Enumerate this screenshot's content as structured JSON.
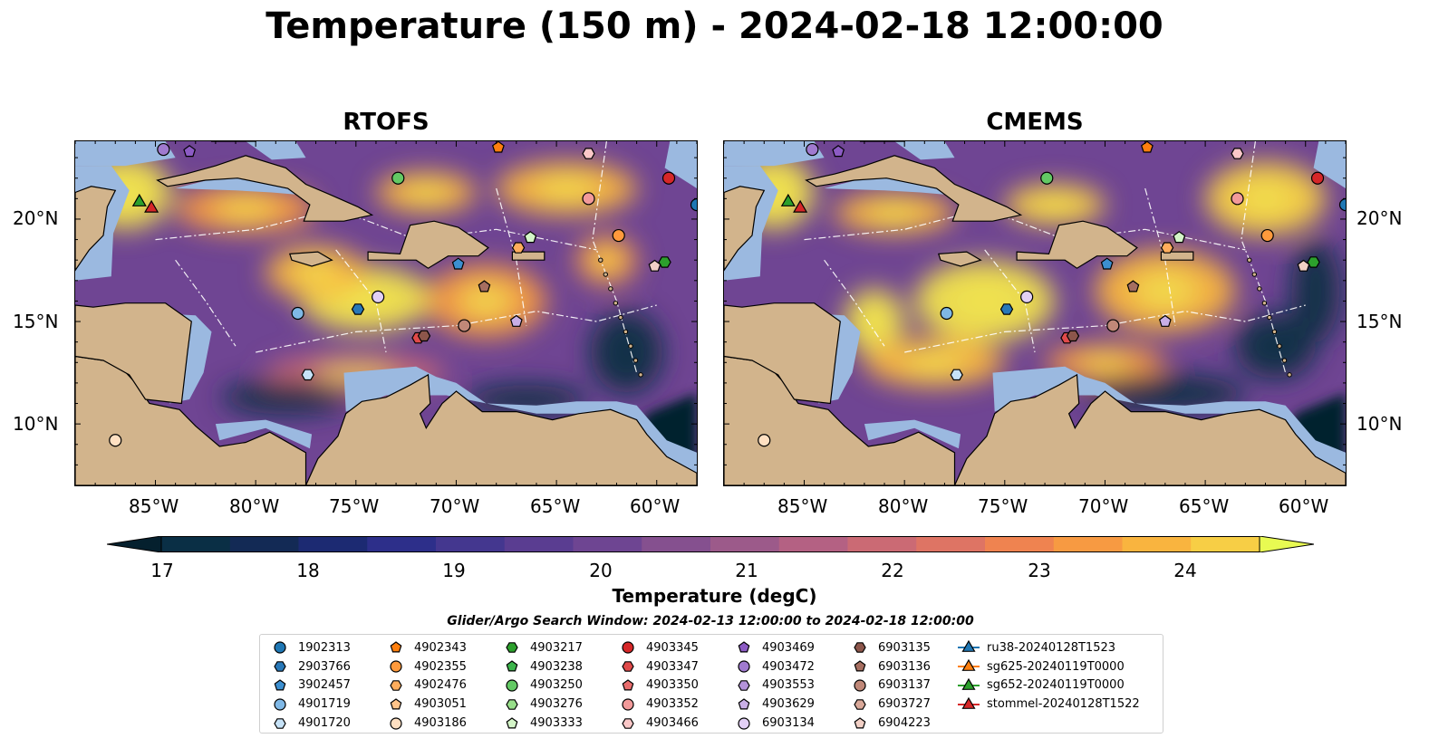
{
  "figure": {
    "title": "Temperature (150 m) - 2024-02-18 12:00:00",
    "panels": [
      {
        "title": "RTOFS"
      },
      {
        "title": "CMEMS"
      }
    ],
    "lat_ticks": [
      "20°N",
      "15°N",
      "10°N"
    ],
    "lon_ticks": [
      "85°W",
      "80°W",
      "75°W",
      "70°W",
      "65°W",
      "60°W"
    ]
  },
  "colorbar": {
    "label": "Temperature (degC)",
    "min": 16.5,
    "max": 24.5,
    "ticks": [
      "17",
      "18",
      "19",
      "20",
      "21",
      "22",
      "23",
      "24"
    ],
    "colors": [
      "#0a2f45",
      "#132a55",
      "#1c2a72",
      "#2d2f8a",
      "#44378f",
      "#5a3d91",
      "#6e4592",
      "#85508f",
      "#9c5a8a",
      "#b46183",
      "#cb6a74",
      "#de7464",
      "#ef8350",
      "#f79a42",
      "#f9b43f",
      "#f7ce45",
      "#f1e34e"
    ],
    "under_color": "#05202e",
    "over_color": "#e8fa52"
  },
  "search_window": "Glider/Argo Search Window: 2024-02-13 12:00:00 to 2024-02-18 12:00:00",
  "map_colors": {
    "land": "#d2b48c",
    "shelf": "#9bb9e0",
    "deep": "#6f4593"
  },
  "legend": {
    "columns": [
      [
        {
          "label": "1902313",
          "shape": "circle",
          "color": "#1f77b4"
        },
        {
          "label": "2903766",
          "shape": "hexagon",
          "color": "#2878b8"
        },
        {
          "label": "3902457",
          "shape": "pentagon",
          "color": "#3c8fd0"
        },
        {
          "label": "4901719",
          "shape": "circle",
          "color": "#7fb8e6"
        },
        {
          "label": "4901720",
          "shape": "hexagon",
          "color": "#c6e2f7"
        }
      ],
      [
        {
          "label": "4902343",
          "shape": "pentagon",
          "color": "#ff7f0e"
        },
        {
          "label": "4902355",
          "shape": "circle",
          "color": "#ff9a3c"
        },
        {
          "label": "4902476",
          "shape": "hexagon",
          "color": "#ffad5c"
        },
        {
          "label": "4903051",
          "shape": "pentagon",
          "color": "#ffc48a"
        },
        {
          "label": "4903186",
          "shape": "circle",
          "color": "#ffe0c2"
        }
      ],
      [
        {
          "label": "4903217",
          "shape": "hexagon",
          "color": "#2ca02c"
        },
        {
          "label": "4903238",
          "shape": "pentagon",
          "color": "#3cb44b"
        },
        {
          "label": "4903250",
          "shape": "circle",
          "color": "#63c964"
        },
        {
          "label": "4903276",
          "shape": "hexagon",
          "color": "#98df8a"
        },
        {
          "label": "4903333",
          "shape": "pentagon",
          "color": "#d4f5c8"
        }
      ],
      [
        {
          "label": "4903345",
          "shape": "circle",
          "color": "#d62728"
        },
        {
          "label": "4903347",
          "shape": "hexagon",
          "color": "#e04a4a"
        },
        {
          "label": "4903350",
          "shape": "pentagon",
          "color": "#ea6d6d"
        },
        {
          "label": "4903352",
          "shape": "circle",
          "color": "#f29a9a"
        },
        {
          "label": "4903466",
          "shape": "hexagon",
          "color": "#fbc8c8"
        }
      ],
      [
        {
          "label": "4903469",
          "shape": "pentagon",
          "color": "#8c5bc4"
        },
        {
          "label": "4903472",
          "shape": "circle",
          "color": "#a07acf"
        },
        {
          "label": "4903553",
          "shape": "hexagon",
          "color": "#b493da"
        },
        {
          "label": "4903629",
          "shape": "pentagon",
          "color": "#c9afe6"
        },
        {
          "label": "6903134",
          "shape": "circle",
          "color": "#e2cff5"
        }
      ],
      [
        {
          "label": "6903135",
          "shape": "hexagon",
          "color": "#8c564b"
        },
        {
          "label": "6903136",
          "shape": "pentagon",
          "color": "#a66e60"
        },
        {
          "label": "6903137",
          "shape": "circle",
          "color": "#c08878"
        },
        {
          "label": "6903727",
          "shape": "hexagon",
          "color": "#d9a899"
        },
        {
          "label": "6904223",
          "shape": "pentagon",
          "color": "#f2d0c6"
        }
      ],
      [
        {
          "label": "ru38-20240128T1523",
          "shape": "triangle-line",
          "color": "#1f77b4"
        },
        {
          "label": "sg625-20240119T0000",
          "shape": "triangle-line",
          "color": "#ff7f0e"
        },
        {
          "label": "sg652-20240119T0000",
          "shape": "triangle-line",
          "color": "#2ca02c"
        },
        {
          "label": "stommel-20240128T1522",
          "shape": "triangle-line",
          "color": "#d62728"
        }
      ]
    ]
  },
  "markers": [
    {
      "label": "1902313",
      "lon": -58.0,
      "lat": 20.7,
      "shape": "circle",
      "color": "#1f77b4"
    },
    {
      "label": "2903766",
      "lon": -74.9,
      "lat": 15.6,
      "shape": "hexagon",
      "color": "#2878b8"
    },
    {
      "label": "3902457",
      "lon": -69.9,
      "lat": 17.8,
      "shape": "pentagon",
      "color": "#3c8fd0"
    },
    {
      "label": "4901719",
      "lon": -77.9,
      "lat": 15.4,
      "shape": "circle",
      "color": "#7fb8e6"
    },
    {
      "label": "4901720",
      "lon": -77.4,
      "lat": 12.4,
      "shape": "hexagon",
      "color": "#c6e2f7"
    },
    {
      "label": "4902343",
      "lon": -67.9,
      "lat": 23.5,
      "shape": "pentagon",
      "color": "#ff7f0e"
    },
    {
      "label": "4902355",
      "lon": -61.9,
      "lat": 19.2,
      "shape": "circle",
      "color": "#ff9a3c"
    },
    {
      "label": "4902476",
      "lon": -66.9,
      "lat": 18.6,
      "shape": "hexagon",
      "color": "#ffad5c"
    },
    {
      "label": "4903186",
      "lon": -87.0,
      "lat": 9.2,
      "shape": "circle",
      "color": "#ffe0c2"
    },
    {
      "label": "4903217",
      "lon": -59.6,
      "lat": 17.9,
      "shape": "hexagon",
      "color": "#2ca02c"
    },
    {
      "label": "4903250",
      "lon": -72.9,
      "lat": 22.0,
      "shape": "circle",
      "color": "#63c964"
    },
    {
      "label": "4903333",
      "lon": -66.3,
      "lat": 19.1,
      "shape": "pentagon",
      "color": "#d4f5c8"
    },
    {
      "label": "4903345",
      "lon": -59.4,
      "lat": 22.0,
      "shape": "circle",
      "color": "#d62728"
    },
    {
      "label": "4903347",
      "lon": -71.9,
      "lat": 14.2,
      "shape": "hexagon",
      "color": "#e04a4a"
    },
    {
      "label": "4903352",
      "lon": -63.4,
      "lat": 21.0,
      "shape": "circle",
      "color": "#f29a9a"
    },
    {
      "label": "4903466",
      "lon": -63.4,
      "lat": 23.2,
      "shape": "hexagon",
      "color": "#fbc8c8"
    },
    {
      "label": "4903469",
      "lon": -83.3,
      "lat": 23.3,
      "shape": "pentagon",
      "color": "#8c5bc4"
    },
    {
      "label": "4903472",
      "lon": -84.6,
      "lat": 23.4,
      "shape": "circle",
      "color": "#a07acf"
    },
    {
      "label": "4903629",
      "lon": -67.0,
      "lat": 15.0,
      "shape": "pentagon",
      "color": "#c9afe6"
    },
    {
      "label": "6903134",
      "lon": -73.9,
      "lat": 16.2,
      "shape": "circle",
      "color": "#e2cff5"
    },
    {
      "label": "6903135",
      "lon": -71.6,
      "lat": 14.3,
      "shape": "hexagon",
      "color": "#8c564b"
    },
    {
      "label": "6903136",
      "lon": -68.6,
      "lat": 16.7,
      "shape": "pentagon",
      "color": "#a66e60"
    },
    {
      "label": "6903137",
      "lon": -69.6,
      "lat": 14.8,
      "shape": "circle",
      "color": "#c08878"
    },
    {
      "label": "6904223",
      "lon": -60.1,
      "lat": 17.7,
      "shape": "pentagon",
      "color": "#f2d0c6"
    },
    {
      "label": "sg652-20240119T0000",
      "lon": -85.8,
      "lat": 20.9,
      "shape": "triangle",
      "color": "#2ca02c"
    },
    {
      "label": "stommel-20240128T1522",
      "lon": -85.2,
      "lat": 20.6,
      "shape": "triangle",
      "color": "#d62728"
    }
  ]
}
